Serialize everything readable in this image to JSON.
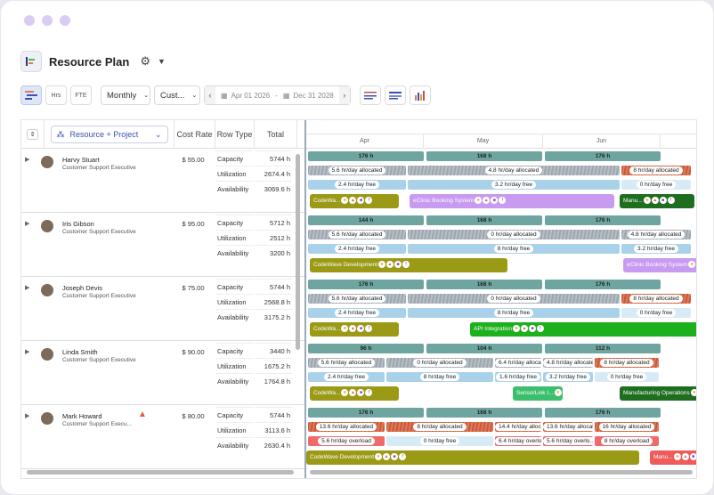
{
  "header": {
    "title": "Resource Plan"
  },
  "toolbar": {
    "hrs_label": "Hrs",
    "fte_label": "FTE",
    "period": "Monthly",
    "custom": "Cust...",
    "date_from": "Apr 01 2026",
    "date_sep": "-",
    "date_to": "Dec 31 2028"
  },
  "columns": {
    "group": "Resource + Project",
    "cost_rate": "Cost Rate",
    "row_type": "Row Type",
    "total": "Total"
  },
  "months": [
    "Apr",
    "May",
    "Jun"
  ],
  "row_types": [
    "Capacity",
    "Utilization",
    "Availability"
  ],
  "resources": [
    {
      "name": "Harvy Stuart",
      "role": "Customer Support Executive",
      "rate": "$ 55.00",
      "totals": [
        "5744 h",
        "2674.4 h",
        "3069.6 h"
      ]
    },
    {
      "name": "Iris Gibson",
      "role": "Customer Support Executive",
      "rate": "$ 95.00",
      "totals": [
        "5712 h",
        "2512 h",
        "3200 h"
      ]
    },
    {
      "name": "Joseph Devis",
      "role": "Customer Support Executive",
      "rate": "$ 75.00",
      "totals": [
        "5744 h",
        "2568.8 h",
        "3175.2 h"
      ]
    },
    {
      "name": "Linda Smith",
      "role": "Customer Support Executive",
      "rate": "$ 90.00",
      "totals": [
        "3440 h",
        "1675.2 h",
        "1764.8 h"
      ]
    },
    {
      "name": "Mark Howard",
      "role": "Customer Support Execu...",
      "rate": "$ 80.00",
      "totals": [
        "5744 h",
        "3113.6 h",
        "2630.4 h"
      ]
    }
  ],
  "timeline": [
    {
      "cap": [
        "176 h",
        "168 h",
        "176 h"
      ],
      "alloc": [
        "5.6 hr/day allocated",
        "4.8 hr/day allocated",
        "8 hr/day allocated"
      ],
      "free": [
        "2.4 hr/day free",
        "3.2 hr/day free",
        "0 hr/day free"
      ],
      "projects": [
        "CodeWa...",
        "eClinic Booking System",
        "Manu..."
      ]
    },
    {
      "cap": [
        "144 h",
        "168 h",
        "176 h"
      ],
      "alloc": [
        "5.6 hr/day allocated",
        "0 hr/day allocated",
        "4.8 hr/day allocated"
      ],
      "free": [
        "2.4 hr/day free",
        "8 hr/day free",
        "3.2 hr/day free"
      ],
      "projects": [
        "CodeWave Development",
        "eClinic Booking System"
      ]
    },
    {
      "cap": [
        "176 h",
        "168 h",
        "176 h"
      ],
      "alloc": [
        "5.6 hr/day allocated",
        "0 hr/day allocated",
        "8 hr/day allocated"
      ],
      "free": [
        "2.4 hr/day free",
        "8 hr/day free",
        "0 hr/day free"
      ],
      "projects": [
        "CodeWa...",
        "API Integration"
      ]
    },
    {
      "cap": [
        "96 h",
        "104 h",
        "112 h"
      ],
      "alloc": [
        "5.6 hr/day allocated",
        "0 hr/day allocated",
        "6.4 hr/day allocat...",
        "4.8 hr/day allocated",
        "8 hr/day allocated"
      ],
      "free": [
        "2.4 hr/day free",
        "8 hr/day free",
        "1.6 hr/day free",
        "3.2 hr/day free",
        "0 hr/day free"
      ],
      "projects": [
        "CodeWa...",
        "SensorLink I...",
        "Manufacturing Operations"
      ]
    },
    {
      "cap": [
        "176 h",
        "168 h",
        "176 h"
      ],
      "alloc": [
        "13.6 hr/day allocated",
        "8 hr/day allocated",
        "14.4 hr/day allocat...",
        "13.6 hr/day allocat...",
        "16 hr/day allocated"
      ],
      "free": [
        "5.6 hr/day overload",
        "0 hr/day free",
        "6.4 hr/day overlo...",
        "5.6 hr/day overlo...",
        "8 hr/day overload"
      ],
      "projects": [
        "CodeWave Development",
        "Manu..."
      ]
    }
  ]
}
